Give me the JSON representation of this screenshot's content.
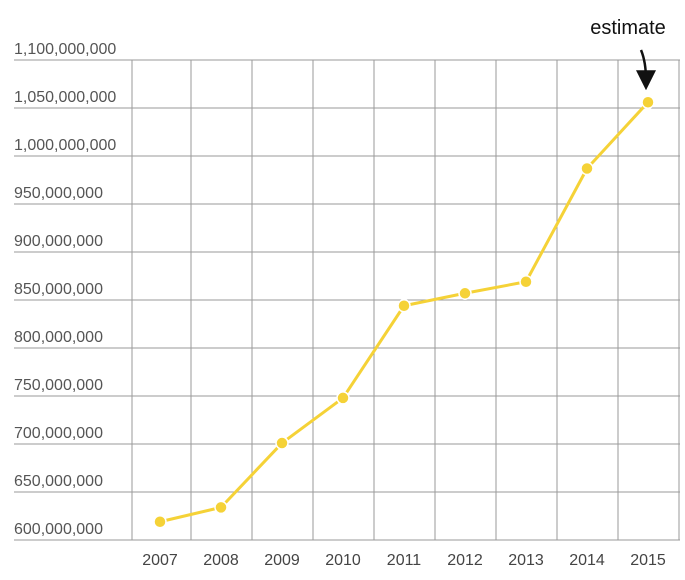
{
  "chart_data": {
    "type": "line",
    "title": "",
    "xlabel": "",
    "ylabel": "",
    "x": [
      "2007",
      "2008",
      "2009",
      "2010",
      "2011",
      "2012",
      "2013",
      "2014",
      "2015"
    ],
    "series": [
      {
        "values": [
          619000000,
          634000000,
          701000000,
          748000000,
          844000000,
          857000000,
          869000000,
          987000000,
          1056000000
        ],
        "color": "#f5d237"
      }
    ],
    "yticks": [
      "600,000,000",
      "650,000,000",
      "700,000,000",
      "750,000,000",
      "800,000,000",
      "850,000,000",
      "900,000,000",
      "950,000,000",
      "1,000,000,000",
      "1,050,000,000",
      "1,100,000,000"
    ],
    "ylim": [
      600000000,
      1100000000
    ],
    "grid": true,
    "annotations": [
      {
        "text": "estimate",
        "x": "2015"
      }
    ]
  }
}
